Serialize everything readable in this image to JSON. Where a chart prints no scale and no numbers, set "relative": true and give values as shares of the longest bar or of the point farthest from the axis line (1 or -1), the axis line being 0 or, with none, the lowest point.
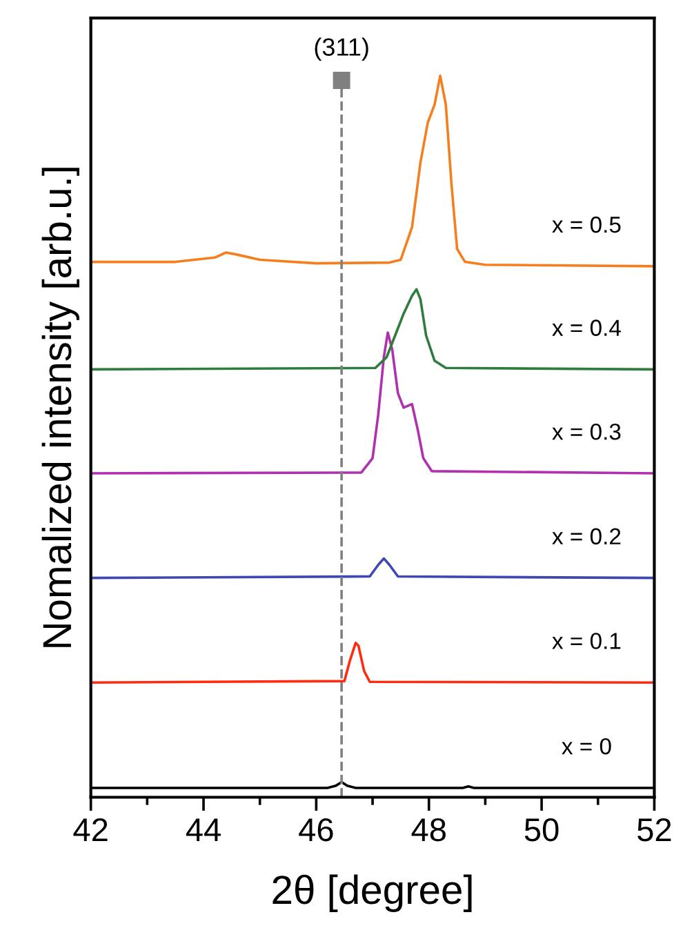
{
  "chart_data": {
    "type": "line",
    "relative": true,
    "xlabel": "2θ [degree]",
    "ylabel": "Nomalized intensity [arb.u.]",
    "xlim": [
      42,
      52
    ],
    "xticks": [
      42,
      {
        "value": 43,
        "label": null
      },
      44,
      {
        "value": 45,
        "label": null
      },
      46,
      {
        "value": 47,
        "label": null
      },
      48,
      {
        "value": 49,
        "label": null
      },
      50,
      {
        "value": 51,
        "label": null
      },
      52
    ],
    "tick_labels": "x",
    "grid": false,
    "legend": false,
    "marker": "none",
    "line_style": "solid",
    "ref_lines": [
      {
        "axis": "x",
        "value": 46.45,
        "color": "#808080",
        "line_style": "dashed"
      }
    ],
    "annotations": [
      "(311)"
    ],
    "series": [
      {
        "name": "x = 0",
        "color": "#000000",
        "x": [
          42,
          46.2,
          46.35,
          46.45,
          46.55,
          46.7,
          48.6,
          48.7,
          48.8,
          52
        ],
        "values": [
          0.013,
          0.013,
          0.016,
          0.021,
          0.016,
          0.013,
          0.013,
          0.015,
          0.013,
          0.013
        ]
      },
      {
        "name": "x = 0.1",
        "color": "#ff2a10",
        "x": [
          42,
          46.5,
          46.6,
          46.7,
          46.75,
          46.85,
          46.95,
          52
        ],
        "values": [
          0.159,
          0.161,
          0.19,
          0.214,
          0.21,
          0.175,
          0.16,
          0.159
        ]
      },
      {
        "name": "x = 0.2",
        "color": "#3f48b0",
        "x": [
          42,
          46.95,
          47.1,
          47.2,
          47.3,
          47.45,
          52
        ],
        "values": [
          0.304,
          0.306,
          0.322,
          0.331,
          0.322,
          0.306,
          0.304
        ]
      },
      {
        "name": "x = 0.3",
        "color": "#b030b0",
        "x": [
          42,
          46.8,
          47.0,
          47.1,
          47.2,
          47.27,
          47.35,
          47.45,
          47.55,
          47.7,
          47.8,
          47.9,
          48.05,
          52
        ],
        "values": [
          0.449,
          0.45,
          0.47,
          0.53,
          0.61,
          0.644,
          0.62,
          0.56,
          0.54,
          0.545,
          0.51,
          0.47,
          0.452,
          0.449
        ]
      },
      {
        "name": "x = 0.4",
        "color": "#2e7d3e",
        "x": [
          42,
          47.05,
          47.25,
          47.4,
          47.55,
          47.7,
          47.78,
          47.85,
          47.95,
          48.1,
          48.3,
          52
        ],
        "values": [
          0.593,
          0.595,
          0.61,
          0.64,
          0.67,
          0.695,
          0.704,
          0.69,
          0.64,
          0.605,
          0.595,
          0.593
        ]
      },
      {
        "name": "x = 0.5",
        "color": "#f57f1f",
        "x": [
          42,
          43.5,
          44.2,
          44.4,
          44.6,
          45,
          46,
          47.3,
          47.5,
          47.7,
          47.85,
          47.98,
          48.1,
          48.2,
          48.3,
          48.4,
          48.5,
          48.64,
          49,
          52
        ],
        "values": [
          0.742,
          0.742,
          0.748,
          0.755,
          0.752,
          0.745,
          0.74,
          0.741,
          0.745,
          0.79,
          0.88,
          0.935,
          0.96,
          1.0,
          0.96,
          0.85,
          0.76,
          0.742,
          0.738,
          0.736
        ]
      }
    ]
  }
}
